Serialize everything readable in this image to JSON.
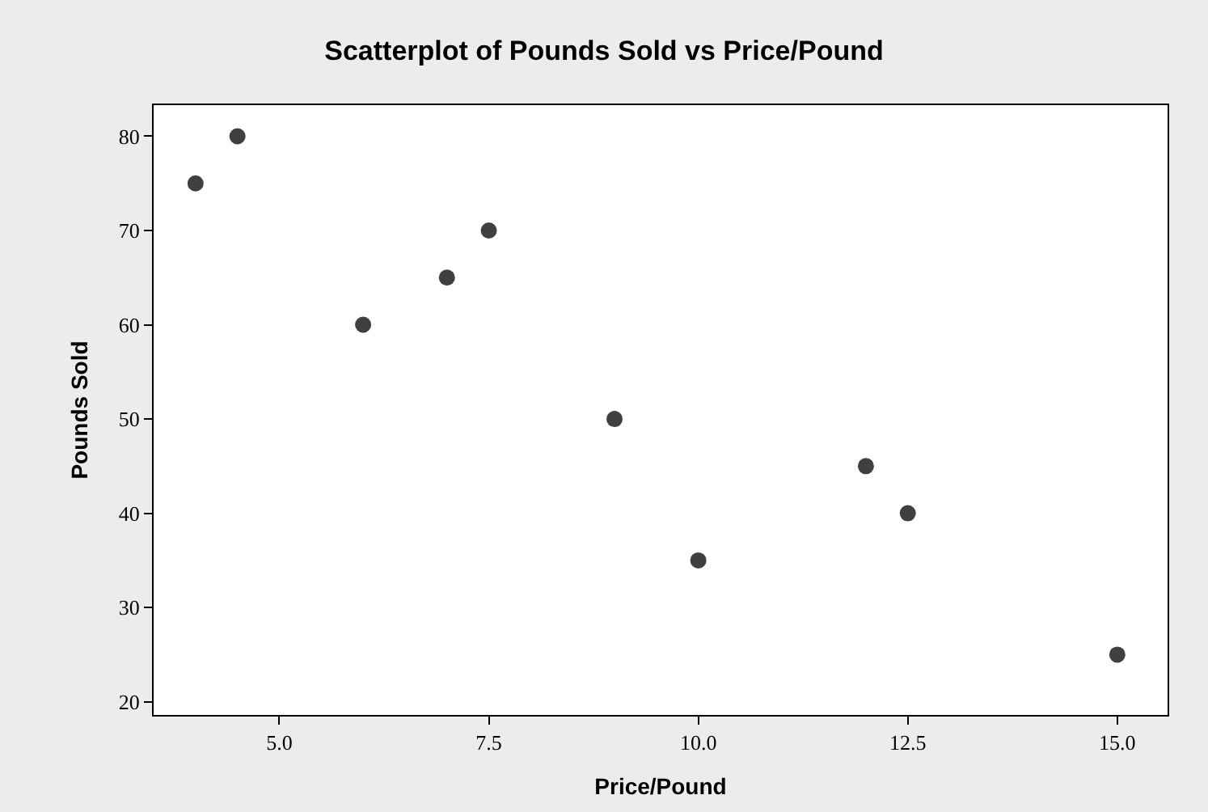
{
  "chart_data": {
    "type": "scatter",
    "title": "Scatterplot of Pounds Sold vs Price/Pound",
    "xlabel": "Price/Pound",
    "ylabel": "Pounds Sold",
    "x": [
      4,
      4.5,
      6,
      7,
      7.5,
      9,
      10,
      12,
      12.5,
      15
    ],
    "values": [
      75,
      80,
      60,
      65,
      70,
      50,
      35,
      45,
      40,
      25
    ],
    "color": "#404040",
    "marker": "circle",
    "xlim": [
      3.5,
      15.6
    ],
    "ylim": [
      18.6,
      83.3
    ],
    "xticks": [
      {
        "value": 5,
        "label": "5.0"
      },
      {
        "value": 7.5,
        "label": "7.5"
      },
      {
        "value": 10,
        "label": "10.0"
      },
      {
        "value": 12.5,
        "label": "12.5"
      },
      {
        "value": 15,
        "label": "15.0"
      }
    ],
    "yticks": [
      20,
      30,
      40,
      50,
      60,
      70,
      80
    ],
    "grid": false
  }
}
